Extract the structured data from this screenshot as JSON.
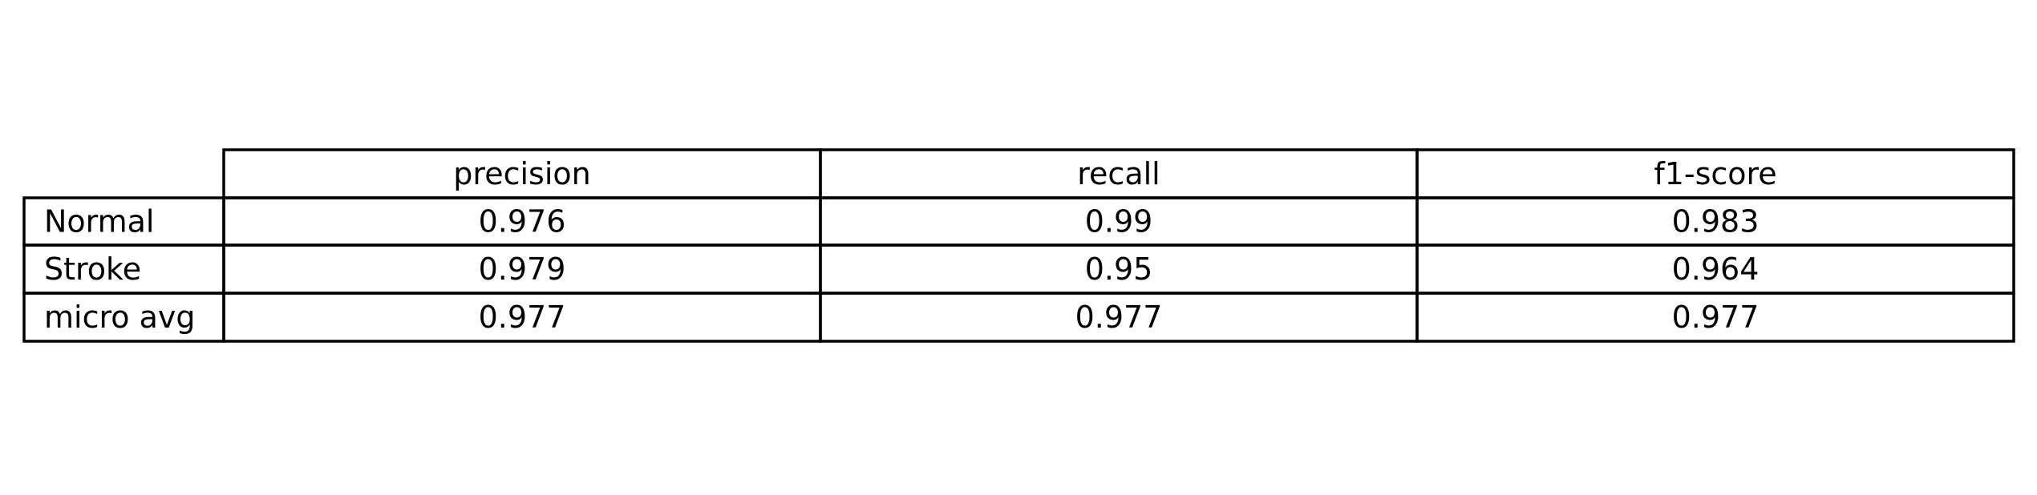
{
  "chart_data": {
    "type": "table",
    "columns": [
      "precision",
      "recall",
      "f1-score"
    ],
    "rows": [
      {
        "label": "Normal",
        "values": [
          "0.976",
          "0.99",
          "0.983"
        ]
      },
      {
        "label": "Stroke",
        "values": [
          "0.979",
          "0.95",
          "0.964"
        ]
      },
      {
        "label": "micro avg",
        "values": [
          "0.977",
          "0.977",
          "0.977"
        ]
      }
    ]
  },
  "colors": {
    "line": "#000000",
    "text": "#000000",
    "background": "#ffffff"
  }
}
